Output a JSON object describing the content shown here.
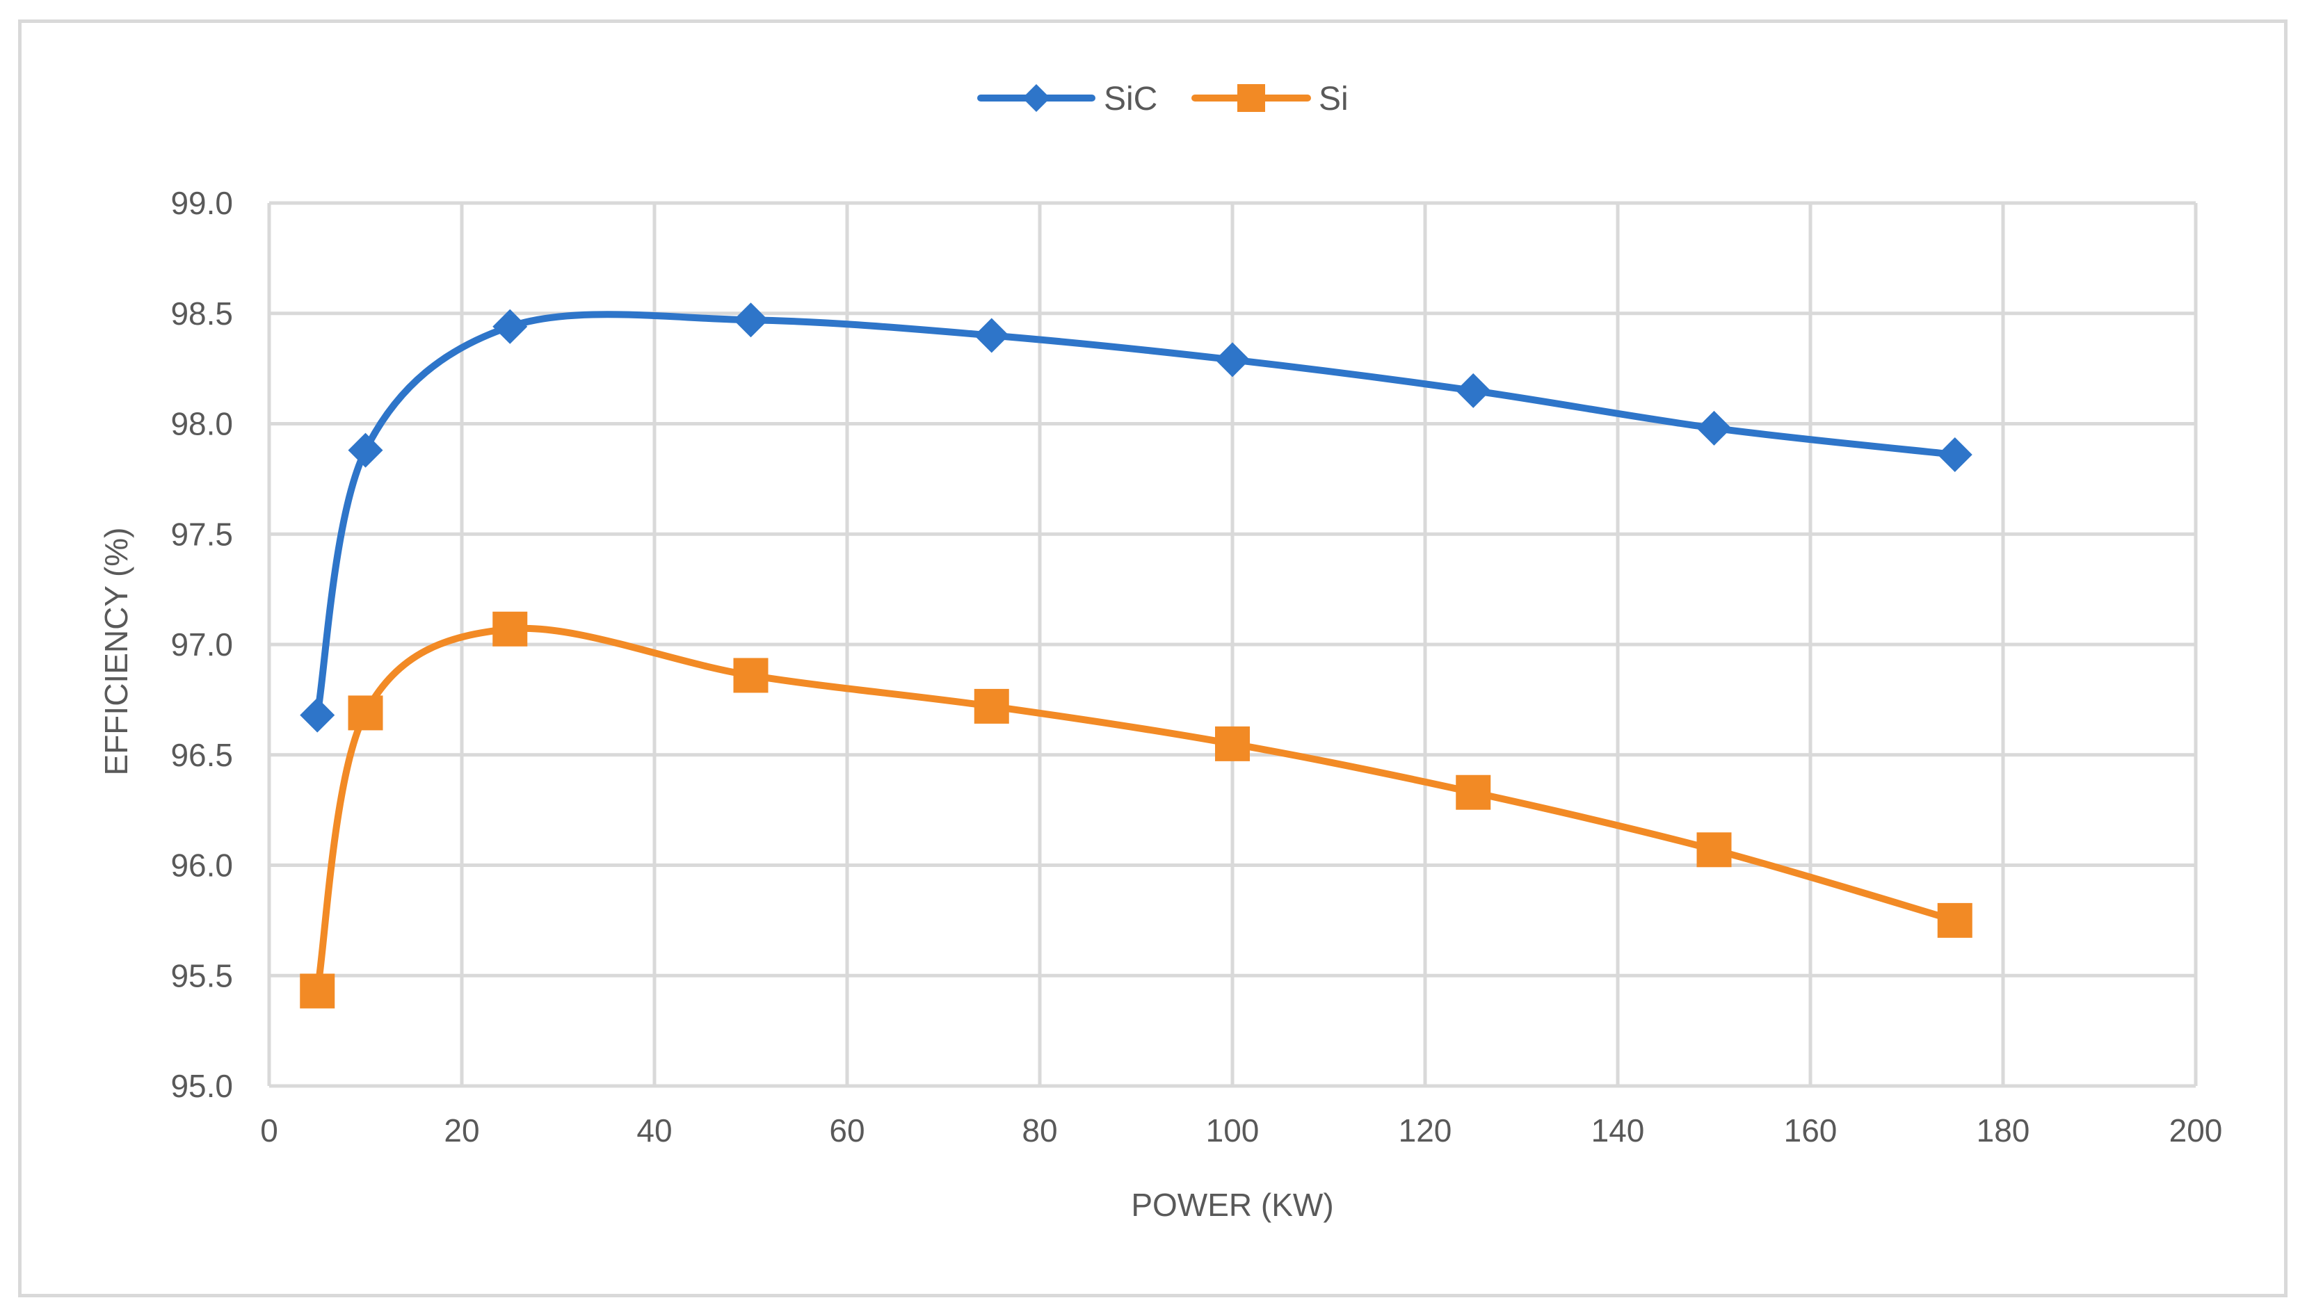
{
  "chart_data": {
    "type": "line",
    "title": "",
    "xlabel": "POWER (KW)",
    "ylabel": "EFFICIENCY (%)",
    "xlim": [
      0,
      200
    ],
    "ylim": [
      95.0,
      99.0
    ],
    "x_ticks": [
      "0",
      "20",
      "40",
      "60",
      "80",
      "100",
      "120",
      "140",
      "160",
      "180",
      "200"
    ],
    "y_ticks": [
      "95.0",
      "95.5",
      "96.0",
      "96.5",
      "97.0",
      "97.5",
      "98.0",
      "98.5",
      "99.0"
    ],
    "grid": true,
    "legend_position": "top-center",
    "x": [
      5,
      10,
      25,
      50,
      75,
      100,
      125,
      150,
      175
    ],
    "series": [
      {
        "name": "SiC",
        "color": "#2e75c9",
        "marker": "diamond",
        "values": [
          96.68,
          97.88,
          98.44,
          98.47,
          98.4,
          98.29,
          98.15,
          97.98,
          97.86
        ]
      },
      {
        "name": "Si",
        "color": "#f28a25",
        "marker": "square",
        "values": [
          95.43,
          96.69,
          97.07,
          96.86,
          96.72,
          96.55,
          96.33,
          96.07,
          95.75
        ]
      }
    ]
  }
}
